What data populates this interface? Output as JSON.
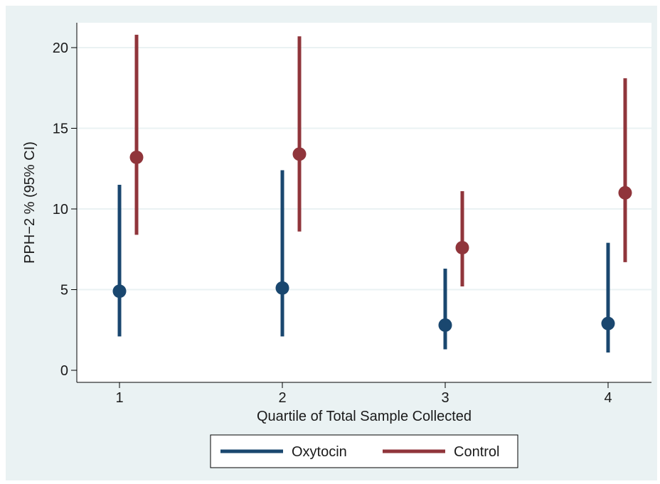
{
  "chart_data": {
    "type": "errorbar",
    "title": "",
    "xlabel": "Quartile of Total Sample Collected",
    "ylabel": "PPH−2 % (95% CI)",
    "categories": [
      "1",
      "2",
      "3",
      "4"
    ],
    "ylim": [
      0,
      21
    ],
    "yticks": [
      0,
      5,
      10,
      15,
      20
    ],
    "grid": true,
    "legend_position": "bottom",
    "series": [
      {
        "name": "Oxytocin",
        "color": "#1a476f",
        "values": [
          4.9,
          5.1,
          2.8,
          2.9
        ],
        "ci_low": [
          2.1,
          2.1,
          1.3,
          1.1
        ],
        "ci_high": [
          11.5,
          12.4,
          6.3,
          7.9
        ]
      },
      {
        "name": "Control",
        "color": "#90353b",
        "values": [
          13.2,
          13.4,
          7.6,
          11.0
        ],
        "ci_low": [
          8.4,
          8.6,
          5.2,
          6.7
        ],
        "ci_high": [
          20.8,
          20.7,
          11.1,
          18.1
        ]
      }
    ],
    "colors": {
      "outer_background": "#eaf2f3",
      "plot_background": "#ffffff",
      "gridline": "#eaf2f3",
      "axis": "#000000"
    }
  }
}
